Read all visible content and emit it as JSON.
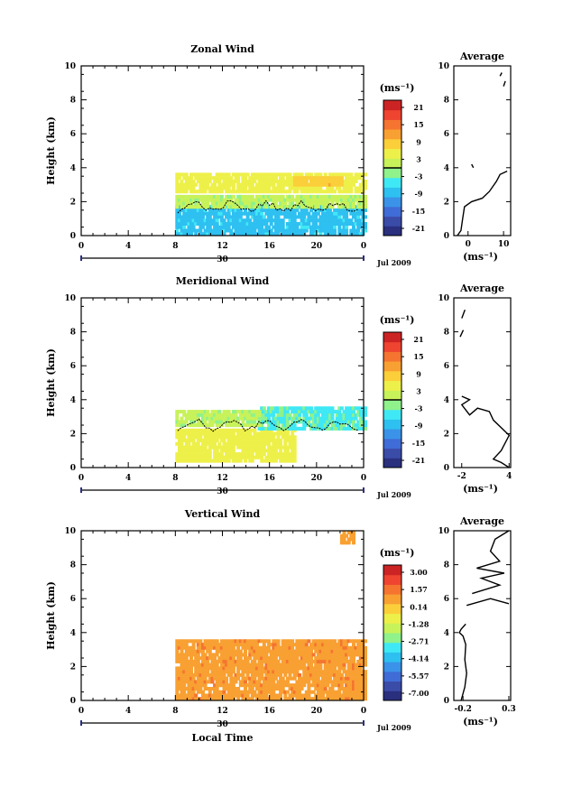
{
  "colormap": [
    "#2a2f7e",
    "#3b4ba8",
    "#3f6cd6",
    "#3a93e8",
    "#2ec0f0",
    "#3fe8f5",
    "#8ff28a",
    "#c8f25a",
    "#eef04a",
    "#fbcf3a",
    "#f8a032",
    "#f57430",
    "#ee4430",
    "#cc2424"
  ],
  "panels": [
    {
      "id": "zonal",
      "title": "Zonal Wind",
      "ylabel": "Height (km)",
      "ylim": [
        0,
        10
      ],
      "yticks": [
        "0",
        "2",
        "4",
        "6",
        "8",
        "10"
      ],
      "xticks": [
        "0",
        "4",
        "8",
        "12",
        "16",
        "20",
        "0"
      ],
      "date_tick": "30",
      "month_label": "Jul 2009",
      "unit_label": "(ms⁻¹)",
      "colorbar_ticks": [
        "21",
        "15",
        "9",
        "3",
        "-3",
        "-9",
        "-15",
        "-21"
      ],
      "average_title": "Average",
      "average_xticks": [
        "0",
        "10"
      ],
      "average_xlim": [
        -4,
        12
      ],
      "average_xlabel": "(ms⁻¹)"
    },
    {
      "id": "meridional",
      "title": "Meridional Wind",
      "ylabel": "Height (km)",
      "ylim": [
        0,
        10
      ],
      "yticks": [
        "0",
        "2",
        "4",
        "6",
        "8",
        "10"
      ],
      "xticks": [
        "0",
        "4",
        "8",
        "12",
        "16",
        "20",
        "0"
      ],
      "date_tick": "30",
      "month_label": "Jul 2009",
      "unit_label": "(ms⁻¹)",
      "colorbar_ticks": [
        "21",
        "15",
        "9",
        "3",
        "-3",
        "-9",
        "-15",
        "-21"
      ],
      "average_title": "Average",
      "average_xticks": [
        "-2",
        "4"
      ],
      "average_xlim": [
        -3,
        4.2
      ],
      "average_xlabel": "(ms⁻¹)"
    },
    {
      "id": "vertical",
      "title": "Vertical Wind",
      "ylabel": "Height (km)",
      "ylim": [
        0,
        10
      ],
      "yticks": [
        "0",
        "2",
        "4",
        "6",
        "8",
        "10"
      ],
      "xticks": [
        "0",
        "4",
        "8",
        "12",
        "16",
        "20",
        "0"
      ],
      "date_tick": "30",
      "month_label": "Jul 2009",
      "unit_label": "(ms⁻¹)",
      "colorbar_ticks": [
        "3.00",
        "1.57",
        "0.14",
        "-1.28",
        "-2.71",
        "-4.14",
        "-5.57",
        "-7.00"
      ],
      "average_title": "Average",
      "average_xticks": [
        "-0.2",
        "0.3"
      ],
      "average_xlim": [
        -0.3,
        0.32
      ],
      "average_xlabel": "(ms⁻¹)",
      "xlabel": "Local Time"
    }
  ],
  "chart_data": [
    {
      "type": "heatmap",
      "title": "Zonal Wind",
      "ylabel": "Height (km)",
      "xlim_hours": [
        0,
        24
      ],
      "ylim": [
        0,
        10
      ],
      "clim": [
        -24,
        24
      ],
      "data_window_hours": [
        8,
        24
      ],
      "layers": [
        {
          "x": [
            8,
            24
          ],
          "y": [
            0,
            1.6
          ],
          "value": -8,
          "label": "cyan easterly core"
        },
        {
          "x": [
            8,
            24
          ],
          "y": [
            1.6,
            2.3
          ],
          "value": 1,
          "label": "green transition"
        },
        {
          "x": [
            8,
            24
          ],
          "y": [
            2.5,
            3.6
          ],
          "value": 5,
          "label": "yellow-green westerly"
        },
        {
          "x": [
            18,
            22
          ],
          "y": [
            2.9,
            3.5
          ],
          "value": 9,
          "label": "yellow patch"
        }
      ],
      "zero_contour_km": 1.7
    },
    {
      "type": "heatmap",
      "title": "Meridional Wind",
      "ylabel": "Height (km)",
      "xlim_hours": [
        0,
        24
      ],
      "ylim": [
        0,
        10
      ],
      "clim": [
        -24,
        24
      ],
      "data_window_hours": [
        8,
        24
      ],
      "layers": [
        {
          "x": [
            8,
            18
          ],
          "y": [
            0.3,
            2.3
          ],
          "value": 5,
          "label": "yellow-green southerly"
        },
        {
          "x": [
            15,
            24
          ],
          "y": [
            2.2,
            3.5
          ],
          "value": -4,
          "label": "cyan northerly"
        },
        {
          "x": [
            8,
            15
          ],
          "y": [
            2.4,
            3.3
          ],
          "value": 1,
          "label": "green"
        }
      ],
      "zero_contour_km": 2.5
    },
    {
      "type": "heatmap",
      "title": "Vertical Wind",
      "ylabel": "Height (km)",
      "xlabel": "Local Time",
      "xlim_hours": [
        0,
        24
      ],
      "ylim": [
        0,
        10
      ],
      "clim": [
        -7.0,
        3.0
      ],
      "data_window_hours": [
        8,
        24
      ],
      "layers": [
        {
          "x": [
            8,
            24
          ],
          "y": [
            0,
            3.5
          ],
          "value": 0.6,
          "label": "pale yellow-green"
        },
        {
          "x": [
            22,
            23
          ],
          "y": [
            9.2,
            9.8
          ],
          "value": 0.6,
          "label": "high sparse echoes"
        }
      ]
    }
  ],
  "average_profiles": [
    {
      "name": "Zonal average",
      "points": [
        [
          -3,
          0
        ],
        [
          -2,
          0.3
        ],
        [
          -1.5,
          1.0
        ],
        [
          -1,
          1.7
        ],
        [
          1,
          2.0
        ],
        [
          4,
          2.2
        ],
        [
          6,
          2.6
        ],
        [
          8,
          3.2
        ],
        [
          9,
          3.6
        ],
        [
          11,
          3.8
        ]
      ],
      "segments": [
        [
          [
            1,
            4.2
          ],
          [
            1.5,
            4.0
          ]
        ],
        [
          [
            10,
            8.8
          ],
          [
            10.5,
            9.1
          ]
        ],
        [
          [
            9,
            9.4
          ],
          [
            9.5,
            9.6
          ]
        ]
      ]
    },
    {
      "name": "Meridional average",
      "points": [
        [
          4,
          0.0
        ],
        [
          3,
          0.3
        ],
        [
          2,
          0.5
        ],
        [
          3,
          1.0
        ],
        [
          4,
          1.9
        ],
        [
          2,
          2.8
        ],
        [
          1.5,
          3.3
        ],
        [
          0,
          3.5
        ],
        [
          -1,
          3.1
        ],
        [
          -2,
          3.7
        ],
        [
          -1,
          4.0
        ],
        [
          -2,
          4.2
        ]
      ],
      "segments": [
        [
          [
            -2.0,
            8.8
          ],
          [
            -1.6,
            9.3
          ]
        ],
        [
          [
            -2.2,
            7.7
          ],
          [
            -1.8,
            8.1
          ]
        ]
      ]
    },
    {
      "name": "Vertical average",
      "points": [
        [
          -0.22,
          0.0
        ],
        [
          -0.18,
          0.8
        ],
        [
          -0.16,
          1.6
        ],
        [
          -0.18,
          2.4
        ],
        [
          -0.17,
          3.3
        ],
        [
          -0.2,
          3.8
        ],
        [
          -0.24,
          4.0
        ],
        [
          -0.22,
          4.2
        ],
        [
          -0.17,
          4.5
        ]
      ],
      "segments": [
        [
          [
            -0.16,
            5.6
          ],
          [
            0.1,
            6.0
          ],
          [
            0.3,
            5.7
          ]
        ],
        [
          [
            -0.1,
            6.3
          ],
          [
            0.2,
            6.8
          ],
          [
            0.0,
            7.2
          ],
          [
            0.25,
            7.5
          ],
          [
            -0.05,
            7.8
          ],
          [
            0.2,
            8.2
          ],
          [
            0.1,
            8.8
          ],
          [
            0.15,
            9.5
          ],
          [
            0.3,
            10.0
          ]
        ]
      ]
    }
  ]
}
